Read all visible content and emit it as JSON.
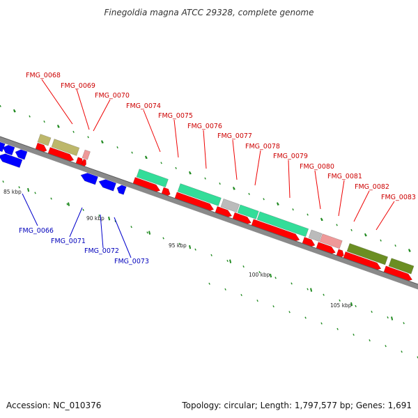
{
  "title": "Finegoldia magna ATCC 29328, complete genome",
  "footer": {
    "accession": "Accession: NC_010376",
    "summary": "Topology: circular; Length: 1,797,577 bp; Genes: 1,691"
  },
  "colors": {
    "forward_cds": "#ff0000",
    "reverse_cds": "#0000ff",
    "forward_label": "#cc0000",
    "reverse_label": "#0000bb",
    "cog_khaki": "#bdb76b",
    "cog_aquamarine": "#33dd99",
    "cog_gray": "#bbbbbb",
    "cog_pink": "#ee9999",
    "cog_olive": "#6b8e23",
    "backbone": "#888888",
    "gc_ticks": "#228b22"
  },
  "scale_labels": [
    "85 kbp",
    "90 kbp",
    "95 kbp",
    "100 kbp",
    "105 kbp"
  ],
  "genes": [
    {
      "id": "FMG_0066",
      "strand": "reverse"
    },
    {
      "id": "FMG_0068",
      "strand": "forward"
    },
    {
      "id": "FMG_0069",
      "strand": "forward"
    },
    {
      "id": "FMG_0070",
      "strand": "forward"
    },
    {
      "id": "FMG_0071",
      "strand": "reverse"
    },
    {
      "id": "FMG_0072",
      "strand": "reverse"
    },
    {
      "id": "FMG_0073",
      "strand": "reverse"
    },
    {
      "id": "FMG_0074",
      "strand": "forward"
    },
    {
      "id": "FMG_0075",
      "strand": "forward"
    },
    {
      "id": "FMG_0076",
      "strand": "forward"
    },
    {
      "id": "FMG_0077",
      "strand": "forward"
    },
    {
      "id": "FMG_0078",
      "strand": "forward"
    },
    {
      "id": "FMG_0079",
      "strand": "forward"
    },
    {
      "id": "FMG_0080",
      "strand": "forward"
    },
    {
      "id": "FMG_0081",
      "strand": "forward"
    },
    {
      "id": "FMG_0082",
      "strand": "forward"
    },
    {
      "id": "FMG_0083",
      "strand": "forward"
    }
  ]
}
